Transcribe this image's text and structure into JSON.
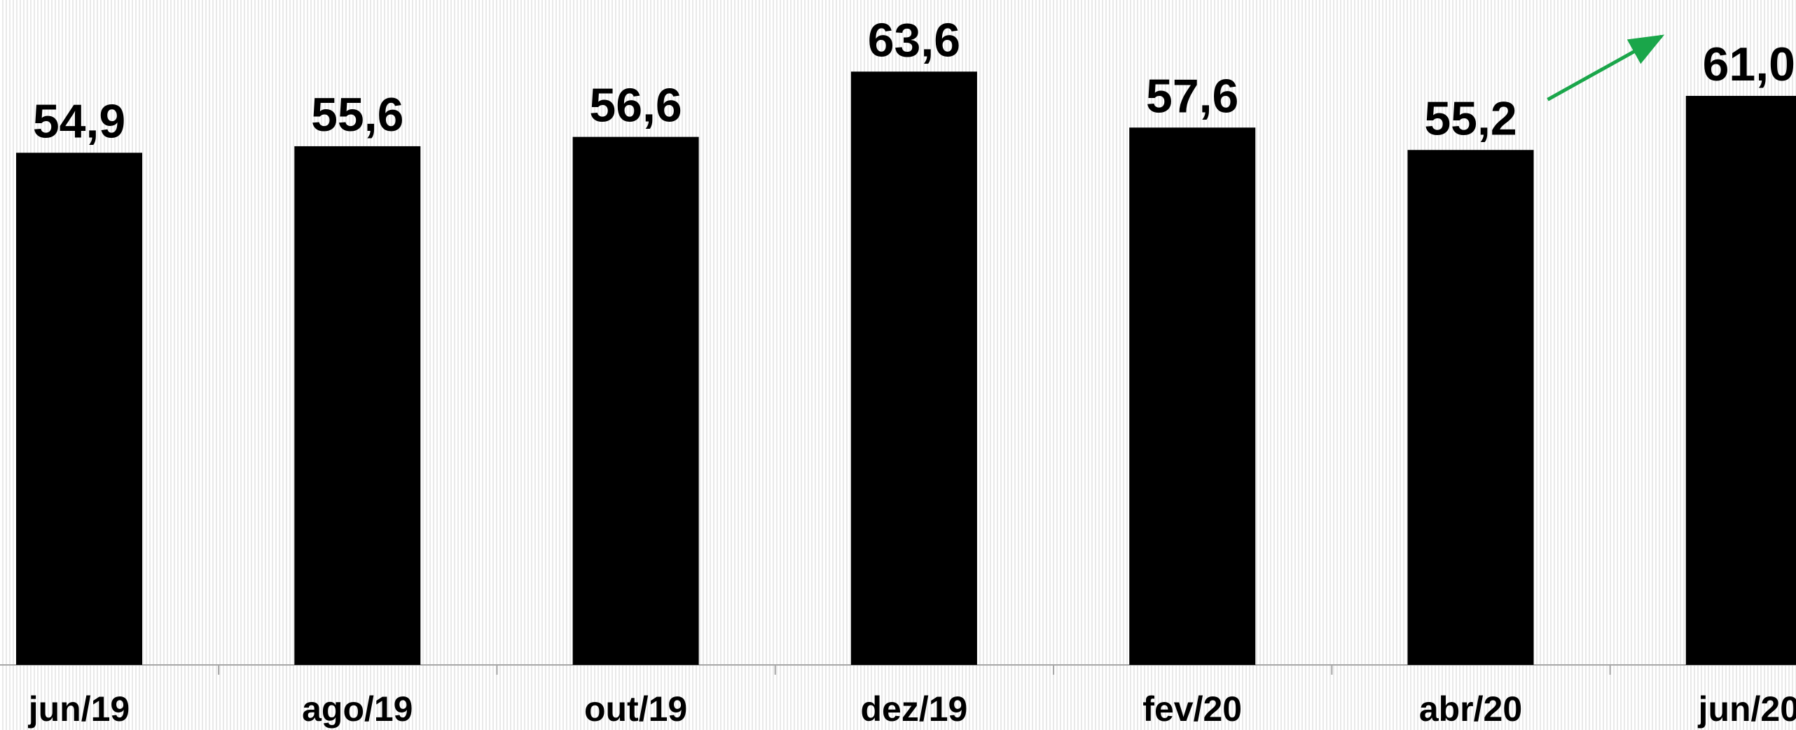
{
  "chart_data": {
    "type": "bar",
    "categories": [
      "jun/19",
      "ago/19",
      "out/19",
      "dez/19",
      "fev/20",
      "abr/20",
      "jun/20"
    ],
    "values": [
      54.9,
      55.6,
      56.6,
      63.6,
      57.6,
      55.2,
      61.0
    ],
    "value_labels": [
      "54,9",
      "55,6",
      "56,6",
      "63,6",
      "57,6",
      "55,2",
      "61,0"
    ],
    "title": "",
    "xlabel": "",
    "ylabel": "",
    "ylim": [
      0,
      67.9
    ],
    "grid": false,
    "legend": "none",
    "bar_color": "#000000",
    "axis_color": "#a6a6a6",
    "annotations": [
      {
        "type": "arrow",
        "from_category": "abr/20",
        "to_category": "jun/20",
        "color": "#1aa64a",
        "meaning": "increase"
      }
    ]
  }
}
